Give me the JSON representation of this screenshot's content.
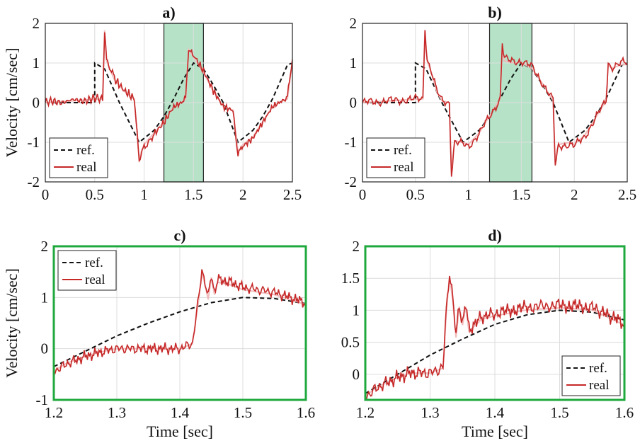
{
  "colors": {
    "ref": "#111111",
    "real": "#c62828",
    "highlight_fill": "#b6e3c8",
    "highlight_border": "#1fa83d",
    "grid": "#dcdcdc"
  },
  "chart_data": [
    {
      "type": "line",
      "title": "a)",
      "xlabel": "",
      "ylabel": "Velocity [cm/sec]",
      "xlim": [
        0,
        2.5
      ],
      "ylim": [
        -2,
        2
      ],
      "xticks": [
        "0",
        "0.5",
        "1",
        "1.5",
        "2",
        "2.5"
      ],
      "yticks": [
        "-2",
        "-1",
        "0",
        "1",
        "2"
      ],
      "grid": true,
      "legend": {
        "position": "bottom-left",
        "entries": [
          "ref.",
          "real"
        ]
      },
      "highlight_region": [
        1.2,
        1.6
      ],
      "series": [
        {
          "name": "ref.",
          "style": "dashed",
          "x": [
            0,
            0.5,
            0.5,
            0.6,
            0.75,
            0.95,
            1.1,
            1.2,
            1.3,
            1.4,
            1.5,
            1.6,
            1.7,
            1.8,
            1.95,
            2.1,
            2.2,
            2.3,
            2.45,
            2.5
          ],
          "y": [
            0,
            0,
            1,
            0.85,
            0,
            -1,
            -0.7,
            -0.35,
            0.1,
            0.6,
            1,
            0.85,
            0.45,
            0,
            -1,
            -0.7,
            -0.35,
            0.1,
            0.95,
            1
          ]
        },
        {
          "name": "real",
          "style": "solid",
          "x": [
            0,
            0.58,
            0.6,
            0.62,
            0.65,
            0.7,
            0.8,
            0.9,
            0.95,
            0.97,
            1.0,
            1.05,
            1.1,
            1.2,
            1.3,
            1.38,
            1.42,
            1.45,
            1.5,
            1.6,
            1.7,
            1.8,
            1.9,
            1.95,
            2.0,
            2.1,
            2.2,
            2.3,
            2.4,
            2.45,
            2.5
          ],
          "y": [
            0,
            0.1,
            1.9,
            1.1,
            0.9,
            0.6,
            0.3,
            0.1,
            -1.5,
            -1.3,
            -1.1,
            -0.95,
            -0.8,
            -0.5,
            -0.1,
            0,
            0.1,
            1.4,
            1.2,
            0.8,
            0.3,
            -0.1,
            -0.2,
            -1.3,
            -1.1,
            -0.9,
            -0.5,
            -0.1,
            0.05,
            0.1,
            1.1
          ]
        }
      ]
    },
    {
      "type": "line",
      "title": "b)",
      "xlabel": "",
      "ylabel": "",
      "xlim": [
        0,
        2.5
      ],
      "ylim": [
        -2,
        2
      ],
      "xticks": [
        "0",
        "0.5",
        "1",
        "1.5",
        "2",
        "2.5"
      ],
      "yticks": [
        "-2",
        "-1",
        "0",
        "1",
        "2"
      ],
      "grid": true,
      "legend": {
        "position": "bottom-left",
        "entries": [
          "ref.",
          "real"
        ]
      },
      "highlight_region": [
        1.2,
        1.6
      ],
      "series": [
        {
          "name": "ref.",
          "style": "dashed",
          "x": [
            0,
            0.5,
            0.5,
            0.6,
            0.75,
            0.95,
            1.1,
            1.2,
            1.3,
            1.4,
            1.5,
            1.6,
            1.7,
            1.8,
            1.95,
            2.1,
            2.2,
            2.3,
            2.45,
            2.5
          ],
          "y": [
            0,
            0,
            1,
            0.85,
            0,
            -1,
            -0.7,
            -0.35,
            0.1,
            0.6,
            1,
            0.85,
            0.45,
            0,
            -1,
            -0.7,
            -0.35,
            0.1,
            0.95,
            1
          ]
        },
        {
          "name": "real",
          "style": "solid",
          "x": [
            0,
            0.57,
            0.59,
            0.61,
            0.65,
            0.7,
            0.75,
            0.82,
            0.84,
            0.87,
            0.95,
            1.0,
            1.1,
            1.2,
            1.3,
            1.32,
            1.34,
            1.4,
            1.5,
            1.6,
            1.7,
            1.8,
            1.82,
            1.85,
            1.95,
            2.0,
            2.1,
            2.2,
            2.3,
            2.32,
            2.35,
            2.45,
            2.5
          ],
          "y": [
            0,
            0.1,
            1.9,
            1.1,
            0.8,
            0.3,
            0.05,
            0,
            -1.8,
            -1,
            -1.05,
            -1.1,
            -0.8,
            -0.35,
            0.1,
            1.5,
            1.1,
            1.05,
            1.05,
            0.9,
            0.5,
            0.05,
            -1.6,
            -1.1,
            -1.05,
            -1.1,
            -0.85,
            -0.4,
            0.05,
            1.0,
            0.9,
            1.0,
            1.0
          ]
        }
      ]
    },
    {
      "type": "line",
      "title": "c)",
      "xlabel": "Time [sec]",
      "ylabel": "Velocity [cm/sec]",
      "xlim": [
        1.2,
        1.6
      ],
      "ylim": [
        -1,
        2
      ],
      "xticks": [
        "1.2",
        "1.3",
        "1.4",
        "1.5",
        "1.6"
      ],
      "yticks": [
        "-1",
        "0",
        "1",
        "2"
      ],
      "grid": true,
      "legend": {
        "position": "top-left",
        "entries": [
          "ref.",
          "real"
        ]
      },
      "series": [
        {
          "name": "ref.",
          "style": "dashed",
          "x": [
            1.2,
            1.25,
            1.3,
            1.35,
            1.4,
            1.45,
            1.5,
            1.55,
            1.6
          ],
          "y": [
            -0.35,
            -0.05,
            0.25,
            0.5,
            0.72,
            0.9,
            1.0,
            0.98,
            0.88
          ]
        },
        {
          "name": "real",
          "style": "solid",
          "x": [
            1.2,
            1.22,
            1.25,
            1.28,
            1.3,
            1.35,
            1.4,
            1.42,
            1.43,
            1.435,
            1.44,
            1.445,
            1.45,
            1.455,
            1.46,
            1.48,
            1.5,
            1.55,
            1.6
          ],
          "y": [
            -0.45,
            -0.3,
            -0.15,
            -0.05,
            0,
            0,
            0,
            0.1,
            1.0,
            1.55,
            1.3,
            1.0,
            1.45,
            1.1,
            1.35,
            1.3,
            1.2,
            1.1,
            0.9
          ]
        }
      ]
    },
    {
      "type": "line",
      "title": "d)",
      "xlabel": "Time [sec]",
      "ylabel": "",
      "xlim": [
        1.2,
        1.6
      ],
      "ylim": [
        -0.4,
        2
      ],
      "xticks": [
        "1.2",
        "1.3",
        "1.4",
        "1.5",
        "1.6"
      ],
      "yticks": [
        "0",
        "0.5",
        "1",
        "1.5",
        "2"
      ],
      "grid": true,
      "legend": {
        "position": "bottom-right",
        "entries": [
          "ref.",
          "real"
        ]
      },
      "series": [
        {
          "name": "ref.",
          "style": "dashed",
          "x": [
            1.2,
            1.25,
            1.3,
            1.35,
            1.4,
            1.45,
            1.5,
            1.55,
            1.6
          ],
          "y": [
            -0.3,
            0.0,
            0.3,
            0.55,
            0.78,
            0.93,
            1.0,
            0.97,
            0.85
          ]
        },
        {
          "name": "real",
          "style": "solid",
          "x": [
            1.2,
            1.22,
            1.25,
            1.27,
            1.3,
            1.32,
            1.325,
            1.33,
            1.335,
            1.34,
            1.345,
            1.35,
            1.355,
            1.36,
            1.38,
            1.4,
            1.45,
            1.5,
            1.55,
            1.58,
            1.6
          ],
          "y": [
            -0.35,
            -0.2,
            -0.05,
            0.02,
            0.02,
            0.1,
            1.0,
            1.6,
            1.2,
            0.6,
            1.1,
            0.8,
            1.1,
            0.7,
            0.9,
            0.95,
            1.05,
            1.08,
            1.05,
            0.9,
            0.8
          ]
        }
      ]
    }
  ]
}
